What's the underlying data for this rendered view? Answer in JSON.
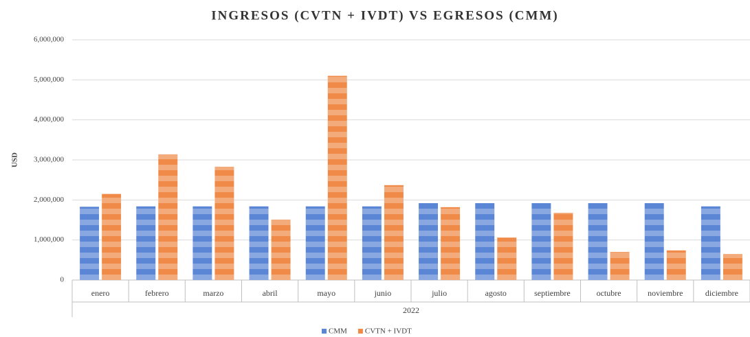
{
  "chart_data": {
    "type": "bar",
    "title": "INGRESOS (CVTN + IVDT) VS EGRESOS (CMM)",
    "y_label": "USD",
    "x_group_label": "2022",
    "categories": [
      "enero",
      "febrero",
      "marzo",
      "abril",
      "mayo",
      "junio",
      "julio",
      "agosto",
      "septiembre",
      "octubre",
      "noviembre",
      "diciembre"
    ],
    "series": [
      {
        "name": "CMM",
        "color": "#5b86d6",
        "values": [
          1830000,
          1840000,
          1840000,
          1840000,
          1840000,
          1840000,
          1920000,
          1920000,
          1920000,
          1920000,
          1920000,
          1840000
        ]
      },
      {
        "name": "CVTN + IVDT",
        "color": "#f08a48",
        "values": [
          2150000,
          3140000,
          2830000,
          1510000,
          5100000,
          2370000,
          1820000,
          1060000,
          1680000,
          700000,
          740000,
          650000
        ]
      }
    ],
    "ylim": [
      0,
      6000000
    ],
    "yticks": [
      0,
      {
        "value": 1000000,
        "label": "1,000,000"
      },
      {
        "value": 2000000,
        "label": "2,000,000"
      },
      {
        "value": 3000000,
        "label": "3,000,000"
      },
      {
        "value": 4000000,
        "label": "4,000,000"
      },
      {
        "value": 5000000,
        "label": "5,000,000"
      },
      {
        "value": 6000000,
        "label": "6,000,000"
      }
    ],
    "grid": true,
    "legend": "bottom"
  }
}
